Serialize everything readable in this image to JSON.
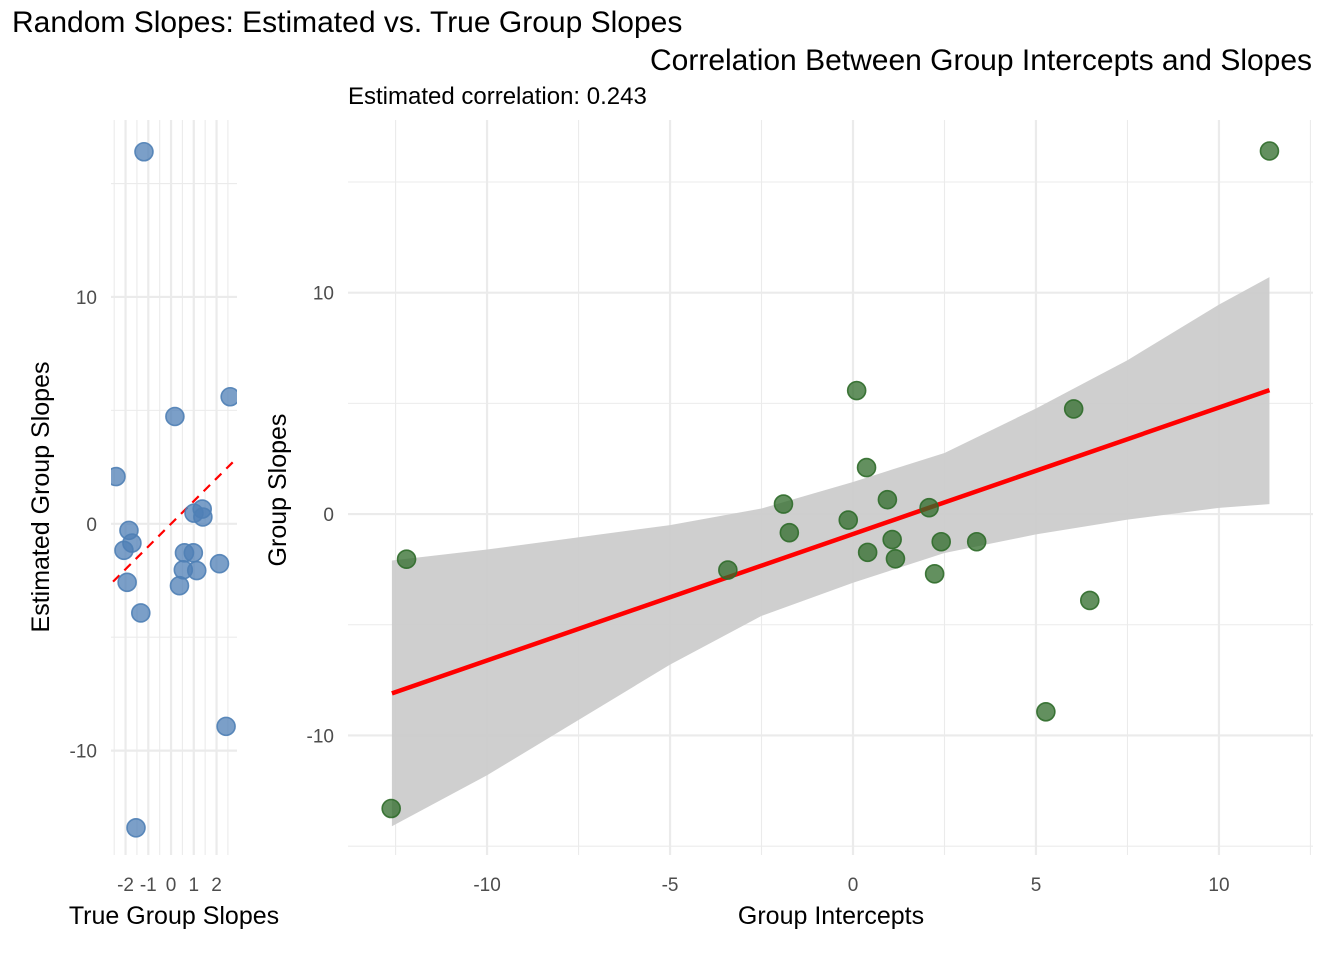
{
  "chart_data": [
    {
      "type": "scatter",
      "panel": "left",
      "title": "Random Slopes: Estimated vs. True Group Slopes",
      "xlabel": "True Group Slopes",
      "ylabel": "Estimated Group Slopes",
      "xlim": [
        -2.64,
        2.9
      ],
      "ylim": [
        -14.6,
        17.8
      ],
      "xticks": [
        -2,
        -1,
        0,
        1,
        2
      ],
      "xtick_labels": [
        "-2",
        "-1",
        "0",
        "1",
        "2"
      ],
      "xminor": [
        -2.5,
        -1.5,
        -0.5,
        0.5,
        1.5,
        2.5
      ],
      "yticks": [
        -10,
        0,
        10
      ],
      "ytick_labels": [
        "-10",
        "0",
        "10"
      ],
      "yminor": [
        -5,
        5,
        15
      ],
      "grid": true,
      "point_color": "#4f7fb5",
      "reference_line": {
        "type": "dashed",
        "slope": 1,
        "intercept": 0,
        "color": "#ff0000"
      },
      "points": [
        {
          "x": -1.19,
          "y": 16.4
        },
        {
          "x": 0.17,
          "y": 4.73
        },
        {
          "x": 2.6,
          "y": 5.6
        },
        {
          "x": -2.42,
          "y": 2.08
        },
        {
          "x": -1.85,
          "y": -0.29
        },
        {
          "x": -1.72,
          "y": -0.85
        },
        {
          "x": -2.07,
          "y": -1.17
        },
        {
          "x": -1.93,
          "y": -2.58
        },
        {
          "x": -1.33,
          "y": -3.93
        },
        {
          "x": 1.01,
          "y": 0.47
        },
        {
          "x": 1.37,
          "y": 0.65
        },
        {
          "x": 1.4,
          "y": 0.3
        },
        {
          "x": 0.59,
          "y": -1.28
        },
        {
          "x": 0.98,
          "y": -1.28
        },
        {
          "x": 0.54,
          "y": -2.03
        },
        {
          "x": 1.13,
          "y": -2.06
        },
        {
          "x": 0.37,
          "y": -2.73
        },
        {
          "x": 2.13,
          "y": -1.76
        },
        {
          "x": 2.42,
          "y": -8.93
        },
        {
          "x": -1.54,
          "y": -13.4
        }
      ]
    },
    {
      "type": "scatter",
      "panel": "right",
      "title": "Correlation Between Group Intercepts and Slopes",
      "subtitle": "Estimated correlation: 0.243",
      "xlabel": "Group Intercepts",
      "ylabel": "Group Slopes",
      "xlim": [
        -13.8,
        12.57
      ],
      "ylim": [
        -15.4,
        17.8
      ],
      "xticks": [
        -10,
        -5,
        0,
        5,
        10
      ],
      "xtick_labels": [
        "-10",
        "-5",
        "0",
        "5",
        "10"
      ],
      "xminor": [
        -12.5,
        -7.5,
        -2.5,
        2.5,
        7.5,
        12.5
      ],
      "yticks": [
        -10,
        0,
        10
      ],
      "ytick_labels": [
        "-10",
        "0",
        "10"
      ],
      "yminor": [
        -15,
        -5,
        5,
        15
      ],
      "grid": true,
      "point_color": "#2f6b2a",
      "fit_line": {
        "color": "#ff0000",
        "x": [
          -12.6,
          11.38
        ],
        "y": [
          -8.1,
          5.6
        ]
      },
      "confidence_band": {
        "color": "#cccccc",
        "x": [
          -12.6,
          -10,
          -5,
          -2.5,
          0,
          2.5,
          5,
          7.5,
          10,
          11.38
        ],
        "upper": [
          -2.1,
          -1.6,
          -0.5,
          0.25,
          1.45,
          2.76,
          4.77,
          6.95,
          9.46,
          10.7
        ],
        "lower": [
          -14.1,
          -11.8,
          -6.8,
          -4.6,
          -3.1,
          -1.76,
          -0.92,
          -0.25,
          0.28,
          0.45
        ]
      },
      "points": [
        {
          "x": -12.62,
          "y": -13.3
        },
        {
          "x": -12.2,
          "y": -2.04
        },
        {
          "x": -3.42,
          "y": -2.53
        },
        {
          "x": 0.1,
          "y": 5.58
        },
        {
          "x": 0.37,
          "y": 2.1
        },
        {
          "x": -1.9,
          "y": 0.45
        },
        {
          "x": -1.74,
          "y": -0.84
        },
        {
          "x": -0.13,
          "y": -0.27
        },
        {
          "x": 0.94,
          "y": 0.65
        },
        {
          "x": 2.08,
          "y": 0.29
        },
        {
          "x": 0.4,
          "y": -1.73
        },
        {
          "x": 1.07,
          "y": -1.15
        },
        {
          "x": 1.16,
          "y": -2.02
        },
        {
          "x": 2.41,
          "y": -1.25
        },
        {
          "x": 3.38,
          "y": -1.25
        },
        {
          "x": 2.23,
          "y": -2.7
        },
        {
          "x": 11.38,
          "y": 16.4
        },
        {
          "x": 6.03,
          "y": 4.75
        },
        {
          "x": 6.47,
          "y": -3.9
        },
        {
          "x": 5.27,
          "y": -8.93
        }
      ]
    }
  ]
}
